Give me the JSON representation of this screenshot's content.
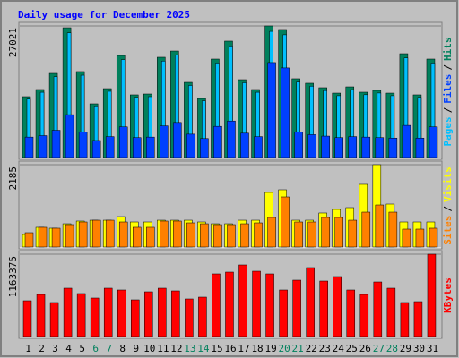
{
  "title": "Daily usage for December 2025",
  "categories": [
    "1",
    "2",
    "3",
    "4",
    "5",
    "6",
    "7",
    "8",
    "9",
    "10",
    "11",
    "12",
    "13",
    "14",
    "15",
    "16",
    "17",
    "18",
    "19",
    "20",
    "21",
    "22",
    "23",
    "24",
    "25",
    "26",
    "27",
    "28",
    "29",
    "30",
    "31"
  ],
  "highlight_categories": [
    "6",
    "7",
    "13",
    "14",
    "20",
    "21",
    "27",
    "28"
  ],
  "highlight_color": "#00805c",
  "legend_separator": "/",
  "chart_data": [
    {
      "type": "bar",
      "ylim": [
        0,
        27021
      ],
      "yticks": [
        27021
      ],
      "series": [
        {
          "name": "Hits",
          "color": "#00805c",
          "values": [
            12500,
            13970,
            17280,
            26650,
            17650,
            11030,
            14150,
            20950,
            12870,
            13050,
            20590,
            21870,
            15440,
            12130,
            20220,
            23900,
            15990,
            13970,
            27021,
            26290,
            16180,
            15260,
            14340,
            13230,
            14520,
            13420,
            13790,
            13230,
            21320,
            12870,
            20220
          ]
        },
        {
          "name": "Files",
          "color": "#0040ff",
          "values": [
            4200,
            4500,
            5600,
            8800,
            5200,
            3500,
            4300,
            6300,
            4100,
            4200,
            6500,
            7200,
            4800,
            3900,
            6400,
            7500,
            5000,
            4300,
            19500,
            18400,
            5200,
            4700,
            4400,
            4100,
            4300,
            4200,
            4100,
            4000,
            6600,
            4000,
            6300
          ]
        },
        {
          "name": "Pages",
          "color": "#00c0ff",
          "values": [
            12000,
            13400,
            16600,
            25600,
            16900,
            10600,
            13600,
            20100,
            12350,
            12500,
            19800,
            21000,
            14800,
            11650,
            19400,
            22900,
            15350,
            13400,
            25900,
            25200,
            15500,
            14650,
            13750,
            12700,
            13950,
            12900,
            13250,
            12700,
            20450,
            12350,
            19400
          ]
        }
      ]
    },
    {
      "type": "bar",
      "ylim": [
        0,
        2185
      ],
      "yticks": [
        2185
      ],
      "series": [
        {
          "name": "Visits",
          "color": "#ffff00",
          "values": [
            333,
            523,
            499,
            617,
            689,
            712,
            712,
            807,
            665,
            665,
            712,
            712,
            712,
            665,
            617,
            617,
            712,
            712,
            1449,
            1520,
            712,
            712,
            903,
            998,
            1045,
            1663,
            2185,
            1140,
            665,
            665,
            665
          ]
        },
        {
          "name": "Sites",
          "color": "#ff8000",
          "values": [
            380,
            523,
            499,
            594,
            665,
            712,
            712,
            665,
            523,
            523,
            689,
            689,
            641,
            617,
            594,
            594,
            617,
            641,
            784,
            1330,
            665,
            665,
            784,
            784,
            712,
            926,
            1116,
            926,
            475,
            475,
            499
          ]
        }
      ]
    },
    {
      "type": "bar",
      "ylim": [
        0,
        1163375
      ],
      "yticks": [
        1163375
      ],
      "series": [
        {
          "name": "KBytes",
          "color": "#ff0000",
          "values": [
            505816,
            594334,
            480525,
            682852,
            606979,
            543752,
            682852,
            657560,
            518460,
            632270,
            682852,
            644914,
            531106,
            556397,
            885177,
            910466,
            1011630,
            923113,
            885177,
            657560,
            796659,
            973695,
            784013,
            847240,
            657560,
            594334,
            771368,
            682852,
            480525,
            493170,
            1163375
          ]
        }
      ]
    }
  ]
}
